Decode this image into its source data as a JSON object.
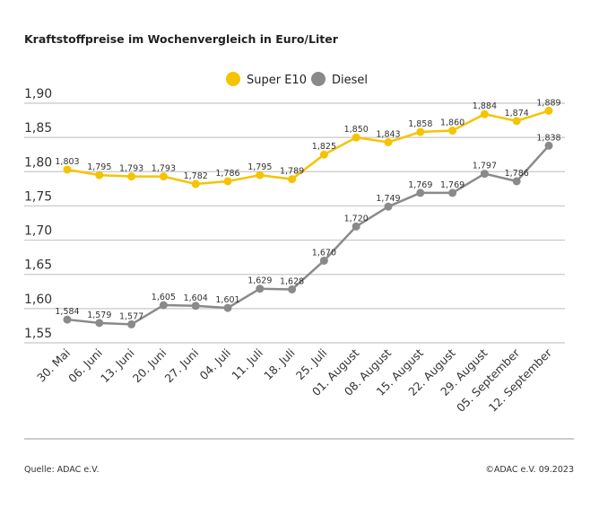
{
  "chart_data": {
    "type": "line",
    "title": "Kraftstoffpreise im Wochenvergleich in Euro/Liter",
    "xlabel": "",
    "ylabel": "",
    "ylim": [
      1.55,
      1.9
    ],
    "yticks": [
      "1,55",
      "1,60",
      "1,65",
      "1,70",
      "1,75",
      "1,80",
      "1,85",
      "1,90"
    ],
    "grid": true,
    "legend_position": "top-center",
    "categories": [
      "30. Mai",
      "06. Juni",
      "13. Juni",
      "20. Juni",
      "27. Juni",
      "04. Juli",
      "11. Juli",
      "18. Juli",
      "25. Juli",
      "01. August",
      "08. August",
      "15. August",
      "22. August",
      "29. August",
      "05. September",
      "12. September"
    ],
    "series": [
      {
        "name": "Super E10",
        "color": "#f5c400",
        "values": [
          1.803,
          1.795,
          1.793,
          1.793,
          1.782,
          1.786,
          1.795,
          1.789,
          1.825,
          1.85,
          1.843,
          1.858,
          1.86,
          1.884,
          1.874,
          1.889
        ]
      },
      {
        "name": "Diesel",
        "color": "#8a8a8a",
        "values": [
          1.584,
          1.579,
          1.577,
          1.605,
          1.604,
          1.601,
          1.629,
          1.628,
          1.67,
          1.72,
          1.749,
          1.769,
          1.769,
          1.797,
          1.786,
          1.838
        ]
      }
    ]
  },
  "footer": {
    "source": "Quelle: ADAC e.V.",
    "copyright": "©ADAC e.V. 09.2023"
  }
}
